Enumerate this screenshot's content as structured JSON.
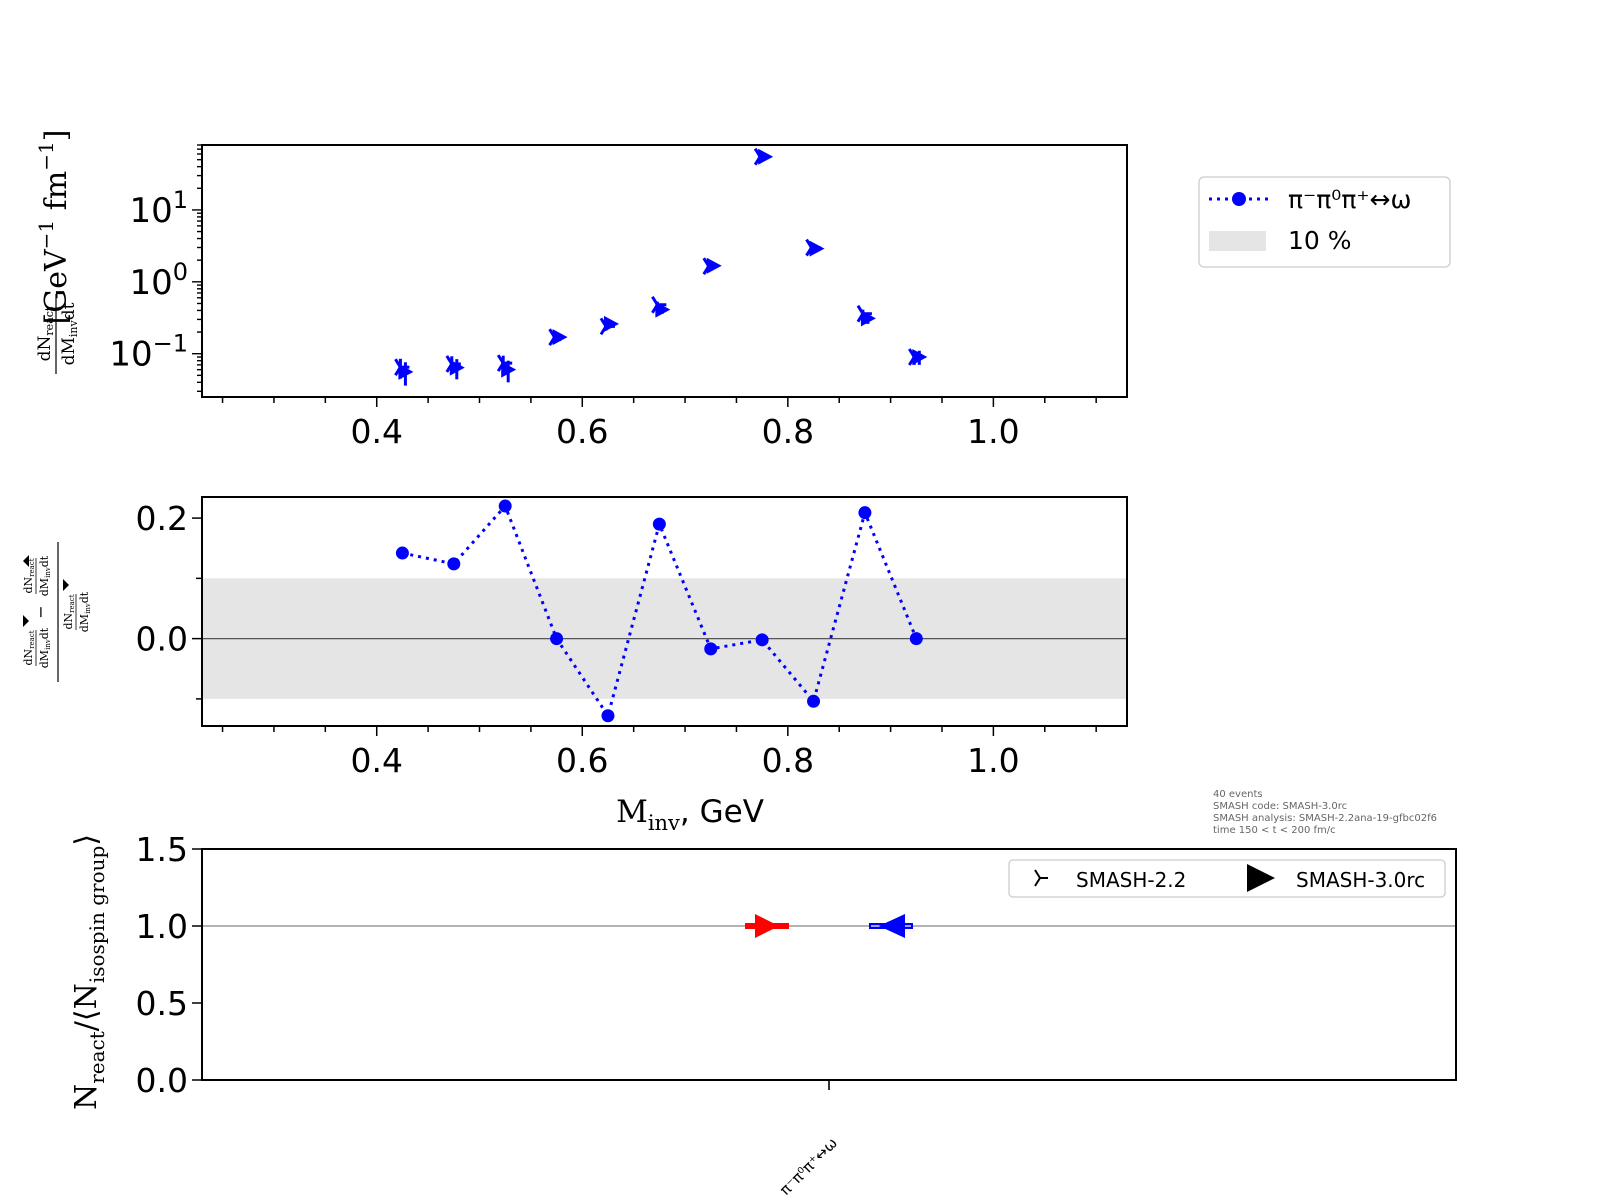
{
  "figure": {
    "info_lines": [
      "40 events",
      "SMASH code:      SMASH-3.0rc",
      "SMASH analysis: SMASH-2.2ana-19-gfbc02f6",
      "time 150 < t < 200 fm/c"
    ]
  },
  "chart_data": [
    {
      "type": "scatter",
      "panel": "top",
      "yscale": "log",
      "xlim": [
        0.23,
        1.13
      ],
      "ylim": [
        0.025,
        80
      ],
      "x_ticks": [
        0.4,
        0.6,
        0.8,
        1.0
      ],
      "x_tick_labels": [
        "0.4",
        "0.6",
        "0.8",
        "1.0"
      ],
      "y_ticks": [
        0.1,
        1,
        10
      ],
      "y_tick_labels": [
        {
          "base": "10",
          "exp": "−1"
        },
        {
          "base": "10",
          "exp": "0"
        },
        {
          "base": "10",
          "exp": "1"
        }
      ],
      "ylabel": {
        "frac_num": "dN",
        "frac_num_sub": "react",
        "frac_den": "dM",
        "frac_den_sub": "inv",
        "frac_den_tail": "dt",
        "units_open": "[GeV",
        "units_exp1": "−1",
        "units_mid": " fm",
        "units_exp2": "−1",
        "units_close": "]"
      },
      "series": [
        {
          "name": "SMASH-2.2",
          "marker": "tri_right",
          "color": "#0000ff",
          "x": [
            0.425,
            0.475,
            0.525,
            0.575,
            0.625,
            0.675,
            0.725,
            0.775,
            0.825,
            0.875,
            0.925
          ],
          "y": [
            0.065,
            0.072,
            0.074,
            0.17,
            0.24,
            0.48,
            1.65,
            55,
            3.0,
            0.36,
            0.09
          ],
          "yerr": [
            0.02,
            0.02,
            0.02,
            0.02,
            0.03,
            0.05,
            0.1,
            3,
            0.2,
            0.05,
            0.02
          ]
        },
        {
          "name": "SMASH-3.0rc",
          "marker": "triangle_right",
          "color": "#0000ff",
          "x": [
            0.425,
            0.475,
            0.525,
            0.575,
            0.625,
            0.675,
            0.725,
            0.775,
            0.825,
            0.875,
            0.925
          ],
          "y": [
            0.056,
            0.064,
            0.06,
            0.17,
            0.26,
            0.41,
            1.67,
            55,
            2.9,
            0.31,
            0.09
          ],
          "yerr": [
            0.02,
            0.02,
            0.02,
            0.02,
            0.03,
            0.05,
            0.1,
            3,
            0.2,
            0.05,
            0.02
          ]
        }
      ]
    },
    {
      "type": "line",
      "panel": "middle",
      "xlim": [
        0.23,
        1.13
      ],
      "ylim": [
        -0.145,
        0.235
      ],
      "x_ticks": [
        0.4,
        0.6,
        0.8,
        1.0
      ],
      "x_tick_labels": [
        "0.4",
        "0.6",
        "0.8",
        "1.0"
      ],
      "y_ticks": [
        0.0,
        0.2
      ],
      "y_tick_labels": [
        "0.0",
        "0.2"
      ],
      "xlabel": {
        "main": "M",
        "sub": "inv",
        "tail": ", GeV"
      },
      "ylabel_parts": {
        "dn": "dN",
        "react": "react",
        "dm": "dM",
        "inv": "inv",
        "dt": "dt",
        "minus": "−"
      },
      "band": {
        "ymin": -0.1,
        "ymax": 0.1,
        "label": "10 %",
        "color": "#e5e5e5"
      },
      "series": [
        {
          "name": "π⁻π⁰π⁺↔ω",
          "color": "#0000ff",
          "linestyle": "dotted",
          "x": [
            0.425,
            0.475,
            0.525,
            0.575,
            0.625,
            0.675,
            0.725,
            0.775,
            0.825,
            0.875,
            0.925
          ],
          "y": [
            0.142,
            0.124,
            0.22,
            0.0,
            -0.128,
            0.19,
            -0.017,
            -0.002,
            -0.104,
            0.209,
            0.0
          ]
        }
      ],
      "legend": {
        "placement": "right-outside",
        "entries": [
          "π⁻π⁰π⁺↔ω",
          "10 %"
        ]
      }
    },
    {
      "type": "scatter",
      "panel": "bottom",
      "ylim": [
        0.0,
        1.5
      ],
      "y_ticks": [
        0.0,
        0.5,
        1.0,
        1.5
      ],
      "y_tick_labels": [
        "0.0",
        "0.5",
        "1.0",
        "1.5"
      ],
      "categories": [
        "π⁻π⁰π⁺↔ω"
      ],
      "ylabel": {
        "n": "N",
        "n_sub": "react",
        "mid": "/⟨N",
        "mid_sub": "isospin group",
        "close": "⟩"
      },
      "reference_line": 1.0,
      "series": [
        {
          "name": "SMASH-2.2",
          "marker": "tri_right",
          "values": [
            1.0
          ],
          "color": "#ff0000"
        },
        {
          "name": "SMASH-3.0rc",
          "marker": "triangle_right",
          "values": [
            1.0
          ],
          "color": "#0000ff"
        }
      ],
      "legend": {
        "placement": "top-right",
        "entries": [
          "SMASH-2.2",
          "SMASH-3.0rc"
        ]
      }
    }
  ]
}
